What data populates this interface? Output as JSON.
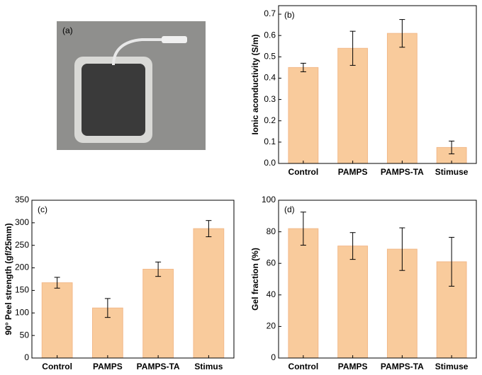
{
  "photo": {
    "panel_label": "(a)"
  },
  "chart_data": [
    {
      "type": "bar",
      "panel_label": "(b)",
      "y_label": "Ionic aconductivity (S/m)",
      "categories": [
        "Control",
        "PAMPS",
        "PAMPS-TA",
        "Stimuse"
      ],
      "values": [
        0.45,
        0.54,
        0.61,
        0.075
      ],
      "errors": [
        0.02,
        0.08,
        0.065,
        0.03
      ],
      "color": "#f9cb9c",
      "ylim": [
        0,
        0.74
      ],
      "yticks": [
        {
          "value": 0,
          "label": "0.0"
        },
        0.1,
        0.2,
        0.3,
        0.4,
        0.5,
        0.6,
        0.7
      ]
    },
    {
      "type": "bar",
      "panel_label": "(c)",
      "y_label": "90° Peel strength (gf/25mm)",
      "categories": [
        "Control",
        "PAMPS",
        "PAMPS-TA",
        "Stimus"
      ],
      "values": [
        167,
        111,
        197,
        287
      ],
      "errors": [
        12,
        21,
        16,
        18
      ],
      "color": "#f9cb9c",
      "ylim": [
        0,
        350
      ],
      "yticks": [
        0,
        50,
        100,
        150,
        200,
        250,
        300,
        350
      ]
    },
    {
      "type": "bar",
      "panel_label": "(d)",
      "y_label": "Gel fraction (%)",
      "categories": [
        "Control",
        "PAMPS",
        "PAMPS-TA",
        "Stimuse"
      ],
      "values": [
        82,
        71,
        69,
        61
      ],
      "errors": [
        10.5,
        8.5,
        13.5,
        15.5
      ],
      "color": "#f9cb9c",
      "ylim": [
        0,
        100
      ],
      "yticks": [
        0,
        20,
        40,
        60,
        80,
        100
      ]
    }
  ]
}
